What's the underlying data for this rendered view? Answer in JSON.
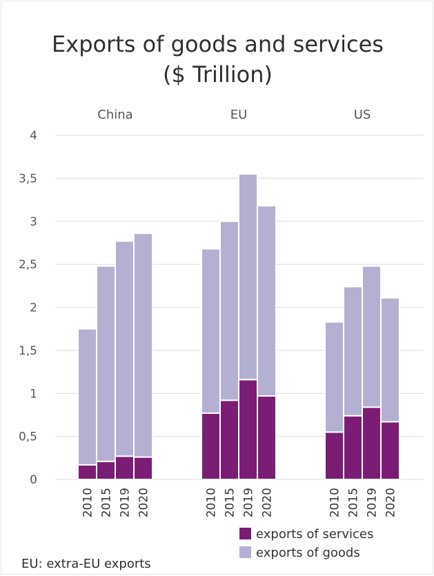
{
  "chart_data": {
    "type": "bar",
    "stacked": true,
    "title": "Exports of goods and services",
    "subtitle": "($ Trillion)",
    "groups": [
      "China",
      "EU",
      "US"
    ],
    "categories": [
      "2010",
      "2015",
      "2019",
      "2020"
    ],
    "ylim": [
      0,
      4
    ],
    "yticks": [
      "0",
      "0,5",
      "1",
      "1,5",
      "2",
      "2,5",
      "3",
      "3,5",
      "4"
    ],
    "grid": true,
    "legend_position": "bottom-right",
    "series": [
      {
        "name": "exports of services",
        "color": "#7b1d74",
        "values": [
          [
            0.17,
            0.21,
            0.27,
            0.26
          ],
          [
            0.77,
            0.92,
            1.16,
            0.97
          ],
          [
            0.55,
            0.74,
            0.84,
            0.67
          ]
        ]
      },
      {
        "name": "exports of goods",
        "color": "#b3b0d2",
        "values": [
          [
            1.58,
            2.27,
            2.5,
            2.6
          ],
          [
            1.91,
            2.08,
            2.39,
            2.21
          ],
          [
            1.28,
            1.5,
            1.64,
            1.44
          ]
        ]
      }
    ]
  },
  "note": "EU: extra-EU exports"
}
